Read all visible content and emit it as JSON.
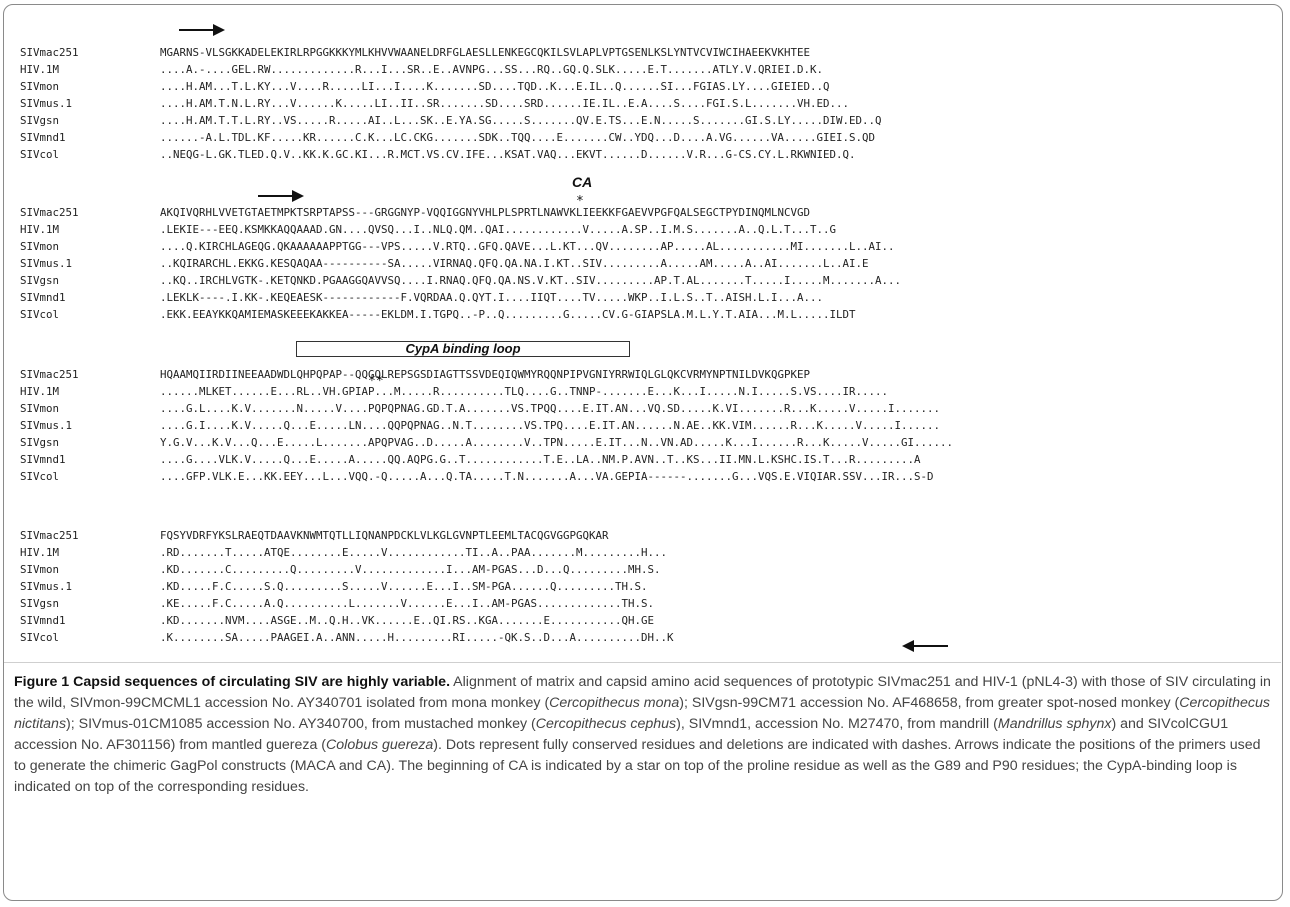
{
  "alignment": {
    "blocks": [
      {
        "rows": [
          {
            "name": "SIVmac251",
            "seq": "MGARNS-VLSGKKADELEKIRLRPGGKKKYMLKHVVWAANELDRFGLAESLLENKEGCQKILSVLAPLVPTGSENLKSLYNTVCVIWCIHAEEKVKHTEE"
          },
          {
            "name": "HIV.1M",
            "seq": "....A.-....GEL.RW.............R...I...SR..E..AVNPG...SS...RQ..GQ.Q.SLK.....E.T.......ATLY.V.QRIEI.D.K."
          },
          {
            "name": "SIVmon",
            "seq": "....H.AM...T.L.KY...V....R.....LI...I....K.......SD....TQD..K...E.IL..Q......SI...FGIAS.LY....GIEIED..Q"
          },
          {
            "name": "SIVmus.1",
            "seq": "....H.AM.T.N.L.RY...V......K.....LI..II..SR.......SD....SRD......IE.IL..E.A....S....FGI.S.L.......VH.ED..."
          },
          {
            "name": "SIVgsn",
            "seq": "....H.AM.T.T.L.RY..VS.....R.....AI..L...SK..E.YA.SG.....S.......QV.E.TS...E.N.....S.......GI.S.LY.....DIW.ED..Q"
          },
          {
            "name": "SIVmnd1",
            "seq": "......-A.L.TDL.KF.....KR......C.K...LC.CKG.......SDK..TQQ....E.......CW..YDQ...D....A.VG......VA.....GIEI.S.QD"
          },
          {
            "name": "SIVcol",
            "seq": "..NEQG-L.GK.TLED.Q.V..KK.K.GC.KI...R.MCT.VS.CV.IFE...KSAT.VAQ...EKVT......D......V.R...G-CS.CY.L.RKWNIED.Q."
          }
        ]
      },
      {
        "rows": [
          {
            "name": "SIVmac251",
            "seq": "AKQIVQRHLVVETGTAETMPKTSRPTAPSS---GRGGNYP-VQQIGGNYVHLPLSPRTLNAWVKLIEEKKFGAEVVPGFQALSEGCTPYDINQMLNCVGD"
          },
          {
            "name": "HIV.1M",
            "seq": ".LEKIE---EEQ.KSMKKAQQAAAD.GN....QVSQ...I..NLQ.QM..QAI............V.....A.SP..I.M.S.......A..Q.L.T...T..G"
          },
          {
            "name": "SIVmon",
            "seq": "....Q.KIRCHLAGEQG.QKAAAAAAPPTGG---VPS.....V.RTQ..GFQ.QAVE...L.KT...QV........AP.....AL...........MI.......L..AI.."
          },
          {
            "name": "SIVmus.1",
            "seq": "..KQIRARCHL.EKKG.KESQAQAA----------SA.....VIRNAQ.QFQ.QA.NA.I.KT..SIV.........A.....AM.....A..AI.......L..AI.E"
          },
          {
            "name": "SIVgsn",
            "seq": "..KQ..IRCHLVGTK-.KETQNKD.PGAAGGQAVVSQ....I.RNAQ.QFQ.QA.NS.V.KT..SIV.........AP.T.AL.......T.....I.....M.......A..."
          },
          {
            "name": "SIVmnd1",
            "seq": ".LEKLK----.I.KK-.KEQEAESK------------F.VQRDAA.Q.QYT.I....IIQT....TV.....WKP..I.L.S..T..AISH.L.I...A..."
          },
          {
            "name": "SIVcol",
            "seq": ".EKK.EEAYKKQAMIEMASKEEEKAKKEA-----EKLDM.I.TGPQ..-P..Q.........G.....CV.G-GIAPSLA.M.L.Y.T.AIA...M.L.....ILDT"
          }
        ]
      },
      {
        "rows": [
          {
            "name": "SIVmac251",
            "seq": "HQAAMQIIRDIINEEAADWDLQHPQPAP--QQGQLREPSGSDIAGTTSSVDEQIQWMYRQQNPIPVGNIYRRWIQLGLQKCVRMYNPTNILDVKQGPKEP"
          },
          {
            "name": "HIV.1M",
            "seq": "......MLKET......E...RL..VH.GPIAP...M.....R..........TLQ....G..TNNP-.......E...K...I.....N.I.....S.VS....IR....."
          },
          {
            "name": "SIVmon",
            "seq": "....G.L....K.V.......N.....V....PQPQPNAG.GD.T.A.......VS.TPQQ....E.IT.AN...VQ.SD.....K.VI.......R...K.....V.....I......."
          },
          {
            "name": "SIVmus.1",
            "seq": "....G.I....K.V.....Q...E.....LN....QQPQPNAG..N.T........VS.TPQ....E.IT.AN......N.AE..KK.VIM......R...K.....V.....I......"
          },
          {
            "name": "SIVgsn",
            "seq": "Y.G.V...K.V...Q...E.....L.......APQPVAG..D.....A........V..TPN.....E.IT...N..VN.AD.....K...I......R...K.....V.....GI......"
          },
          {
            "name": "SIVmnd1",
            "seq": "....G....VLK.V.....Q...E.....A.....QQ.AQPG.G..T............T.E..LA..NM.P.AVN..T..KS...II.MN.L.KSHC.IS.T...R.........A"
          },
          {
            "name": "SIVcol",
            "seq": "....GFP.VLK.E...KK.EEY...L...VQQ.-Q.....A...Q.TA.....T.N.......A...VA.GEPIA------.......G...VQS.E.VIQIAR.SSV...IR...S-D"
          }
        ]
      },
      {
        "rows": [
          {
            "name": "SIVmac251",
            "seq": "FQSYVDRFYKSLRAEQTDAAVKNWMTQTLLIQNANPDCKLVLKGLGVNPTLEEMLTACQGVGGPGQKAR"
          },
          {
            "name": "HIV.1M",
            "seq": ".RD.......T.....ATQE........E.....V............TI..A..PAA.......M.........H..."
          },
          {
            "name": "SIVmon",
            "seq": ".KD.......C.........Q.........V.............I...AM-PGAS...D...Q.........MH.S."
          },
          {
            "name": "SIVmus.1",
            "seq": ".KD.....F.C.....S.Q.........S.....V......E...I..SM-PGA......Q.........TH.S."
          },
          {
            "name": "SIVgsn",
            "seq": ".KE.....F.C.....A.Q..........L.......V......E...I..AM-PGAS.............TH.S."
          },
          {
            "name": "SIVmnd1",
            "seq": ".KD.......NVM....ASGE..M..Q.H..VK......E..QI.RS..KGA.......E...........QH.GE"
          },
          {
            "name": "SIVcol",
            "seq": ".K........SA.....PAAGEI.A..ANN.....H.........RI.....-QK.S..D...A..........DH..K"
          }
        ]
      }
    ],
    "ca_label": "CA",
    "star_marks": "*",
    "double_star_marks": "**",
    "cypa_label": "CypA binding loop"
  },
  "caption": {
    "title": "Figure 1 Capsid sequences of circulating SIV are highly variable.",
    "segments": [
      {
        "t": " Alignment of matrix and capsid amino acid sequences of prototypic SIVmac251 and HIV-1 (pNL4-3) with those of SIV circulating in the wild, SIVmon-99CMCML1 accession No. AY340701 isolated from mona monkey (",
        "i": false
      },
      {
        "t": "Cercopithecus mona",
        "i": true
      },
      {
        "t": "); SIVgsn-99CM71 accession No. AF468658, from greater spot-nosed monkey (",
        "i": false
      },
      {
        "t": "Cercopithecus nictitans",
        "i": true
      },
      {
        "t": "); SIVmus-01CM1085 accession No. AY340700, from mustached monkey (",
        "i": false
      },
      {
        "t": "Cercopithecus cephus",
        "i": true
      },
      {
        "t": "), SIVmnd1, accession No. M27470, from mandrill (",
        "i": false
      },
      {
        "t": "Mandrillus sphynx",
        "i": true
      },
      {
        "t": ") and SIVcolCGU1 accession No. AF301156) from mantled guereza (",
        "i": false
      },
      {
        "t": "Colobus guereza",
        "i": true
      },
      {
        "t": "). Dots represent fully conserved residues and deletions are indicated with dashes. Arrows indicate the positions of the primers used to generate the chimeric GagPol constructs (MACA and CA). The beginning of CA is indicated by a star on top of the proline residue as well as the G89 and P90 residues; the CypA-binding loop is indicated on top of the corresponding residues.",
        "i": false
      }
    ]
  }
}
